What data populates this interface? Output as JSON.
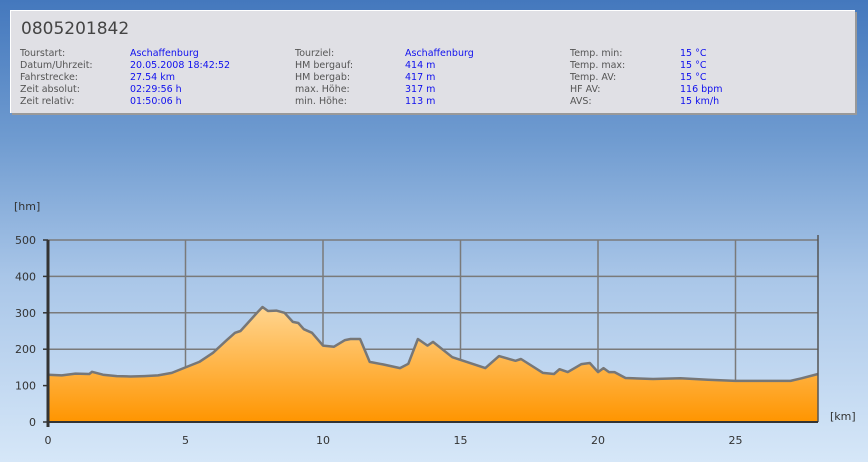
{
  "header": {
    "title": "0805201842"
  },
  "info": {
    "col1": [
      {
        "label": "Tourstart:",
        "value": "Aschaffenburg"
      },
      {
        "label": "Datum/Uhrzeit:",
        "value": "20.05.2008 18:42:52"
      },
      {
        "label": "Fahrstrecke:",
        "value": "27.54 km"
      },
      {
        "label": "Zeit absolut:",
        "value": "02:29:56 h"
      },
      {
        "label": "Zeit relativ:",
        "value": "01:50:06 h"
      }
    ],
    "col2": [
      {
        "label": "Tourziel:",
        "value": "Aschaffenburg"
      },
      {
        "label": "HM bergauf:",
        "value": "414 m"
      },
      {
        "label": "HM bergab:",
        "value": "417 m"
      },
      {
        "label": "max. Höhe:",
        "value": "317 m"
      },
      {
        "label": "min. Höhe:",
        "value": "113 m"
      }
    ],
    "col3": [
      {
        "label": "Temp. min:",
        "value": "15 °C"
      },
      {
        "label": "Temp. max:",
        "value": "15 °C"
      },
      {
        "label": "Temp. AV:",
        "value": "15 °C"
      },
      {
        "label": "HF AV:",
        "value": "116 bpm"
      },
      {
        "label": "AVS:",
        "value": "15 km/h"
      }
    ]
  },
  "chart_data": {
    "type": "area",
    "ylabel": "[hm]",
    "xlabel": "[km]",
    "xlim": [
      0,
      28
    ],
    "ylim": [
      0,
      500
    ],
    "xticks": [
      0,
      5,
      10,
      15,
      20,
      25
    ],
    "yticks": [
      0,
      100,
      200,
      300,
      400,
      500
    ],
    "grid": true,
    "colors": {
      "fill_top": "#ffd590",
      "fill_bottom": "#ff9500",
      "line": "#777777",
      "grid": "#7a7a7a"
    },
    "x": [
      0,
      0.5,
      1,
      1.5,
      1.6,
      2,
      2.5,
      3,
      3.5,
      4,
      4.5,
      5,
      5.5,
      6,
      6.5,
      6.8,
      7,
      7.3,
      7.6,
      7.8,
      8,
      8.3,
      8.6,
      8.9,
      9.1,
      9.3,
      9.6,
      10,
      10.4,
      10.8,
      11,
      11.35,
      11.7,
      12.2,
      12.8,
      13.1,
      13.45,
      13.8,
      14.0,
      14.7,
      15.1,
      15.9,
      16.4,
      17.0,
      17.2,
      18.0,
      18.4,
      18.6,
      18.9,
      19.4,
      19.7,
      20.0,
      20.2,
      20.4,
      20.6,
      21.0,
      22,
      23,
      24,
      25,
      26,
      27,
      27.4,
      28
    ],
    "y": [
      130,
      128,
      133,
      132,
      138,
      130,
      126,
      125,
      126,
      128,
      135,
      150,
      165,
      190,
      225,
      245,
      250,
      275,
      300,
      316,
      305,
      306,
      300,
      275,
      272,
      255,
      245,
      210,
      207,
      225,
      228,
      228,
      165,
      158,
      148,
      160,
      228,
      210,
      220,
      178,
      168,
      148,
      181,
      168,
      173,
      135,
      132,
      145,
      137,
      159,
      162,
      137,
      148,
      137,
      137,
      121,
      118,
      120,
      116,
      113,
      113,
      113,
      120,
      132
    ]
  }
}
